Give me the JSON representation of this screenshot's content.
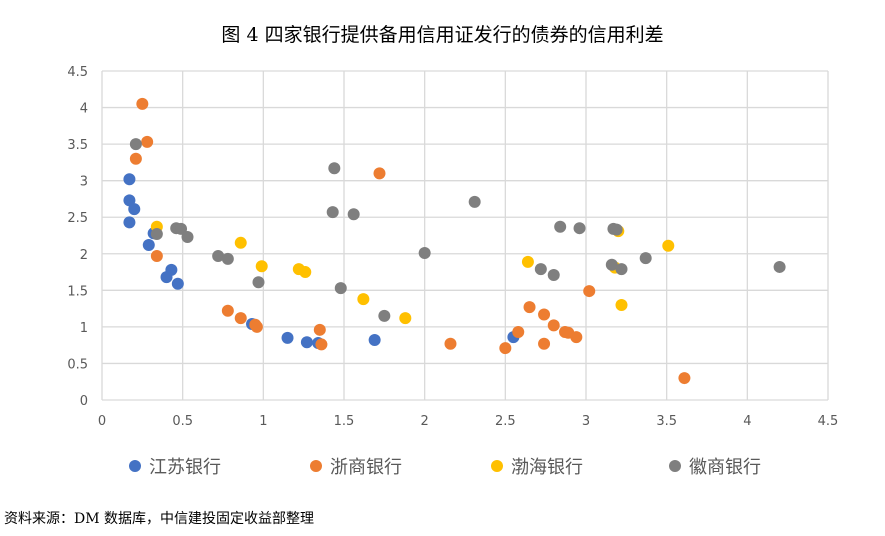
{
  "chart_data": {
    "type": "scatter",
    "title": "图 4 四家银行提供备用信用证发行的债券的信用利差",
    "xlabel": "",
    "ylabel": "",
    "xlim": [
      0,
      4.5
    ],
    "ylim": [
      0,
      4.5
    ],
    "xticks": [
      "0",
      "0.5",
      "1",
      "1.5",
      "2",
      "2.5",
      "3",
      "3.5",
      "4",
      "4.5"
    ],
    "yticks": [
      "0",
      "0.5",
      "1",
      "1.5",
      "2",
      "2.5",
      "3",
      "3.5",
      "4",
      "4.5"
    ],
    "grid": true,
    "legend_position": "bottom",
    "series": [
      {
        "name": "江苏银行",
        "color": "#4472C4",
        "points": [
          [
            0.17,
            3.02
          ],
          [
            0.17,
            2.73
          ],
          [
            0.2,
            2.61
          ],
          [
            0.17,
            2.43
          ],
          [
            0.32,
            2.28
          ],
          [
            0.29,
            2.12
          ],
          [
            0.43,
            1.78
          ],
          [
            0.4,
            1.68
          ],
          [
            0.47,
            1.59
          ],
          [
            0.93,
            1.04
          ],
          [
            1.15,
            0.85
          ],
          [
            1.27,
            0.79
          ],
          [
            1.34,
            0.78
          ],
          [
            1.69,
            0.82
          ],
          [
            2.55,
            0.86
          ]
        ]
      },
      {
        "name": "浙商银行",
        "color": "#ED7D31",
        "points": [
          [
            0.25,
            4.05
          ],
          [
            0.28,
            3.53
          ],
          [
            0.21,
            3.3
          ],
          [
            0.34,
            1.97
          ],
          [
            0.78,
            1.22
          ],
          [
            0.86,
            1.12
          ],
          [
            0.95,
            1.03
          ],
          [
            0.96,
            1.0
          ],
          [
            1.35,
            0.96
          ],
          [
            1.36,
            0.76
          ],
          [
            1.72,
            3.1
          ],
          [
            2.16,
            0.77
          ],
          [
            2.5,
            0.71
          ],
          [
            2.58,
            0.93
          ],
          [
            2.65,
            1.27
          ],
          [
            2.74,
            1.17
          ],
          [
            2.8,
            1.02
          ],
          [
            2.87,
            0.93
          ],
          [
            2.89,
            0.92
          ],
          [
            2.94,
            0.86
          ],
          [
            3.02,
            1.49
          ],
          [
            2.74,
            0.77
          ],
          [
            3.61,
            0.3
          ]
        ]
      },
      {
        "name": "渤海银行",
        "color": "#FFC000",
        "points": [
          [
            0.34,
            2.37
          ],
          [
            0.86,
            2.15
          ],
          [
            0.99,
            1.83
          ],
          [
            1.22,
            1.79
          ],
          [
            1.26,
            1.75
          ],
          [
            1.62,
            1.38
          ],
          [
            1.88,
            1.12
          ],
          [
            2.64,
            1.89
          ],
          [
            3.2,
            2.31
          ],
          [
            3.18,
            1.81
          ],
          [
            3.22,
            1.3
          ],
          [
            3.51,
            2.11
          ]
        ]
      },
      {
        "name": "徽商银行",
        "color": "#7F7F7F",
        "points": [
          [
            0.21,
            3.5
          ],
          [
            0.34,
            2.27
          ],
          [
            0.46,
            2.35
          ],
          [
            0.49,
            2.34
          ],
          [
            0.53,
            2.23
          ],
          [
            0.72,
            1.97
          ],
          [
            0.78,
            1.93
          ],
          [
            0.97,
            1.61
          ],
          [
            1.44,
            3.17
          ],
          [
            1.43,
            2.57
          ],
          [
            1.56,
            2.54
          ],
          [
            1.48,
            1.53
          ],
          [
            1.75,
            1.15
          ],
          [
            2.0,
            2.01
          ],
          [
            2.31,
            2.71
          ],
          [
            2.72,
            1.79
          ],
          [
            2.8,
            1.71
          ],
          [
            2.84,
            2.37
          ],
          [
            2.96,
            2.35
          ],
          [
            3.17,
            2.34
          ],
          [
            3.19,
            2.33
          ],
          [
            3.16,
            1.85
          ],
          [
            3.22,
            1.79
          ],
          [
            3.37,
            1.94
          ],
          [
            4.2,
            1.82
          ]
        ]
      }
    ]
  },
  "source": "资料来源：DM 数据库，中信建投固定收益部整理"
}
